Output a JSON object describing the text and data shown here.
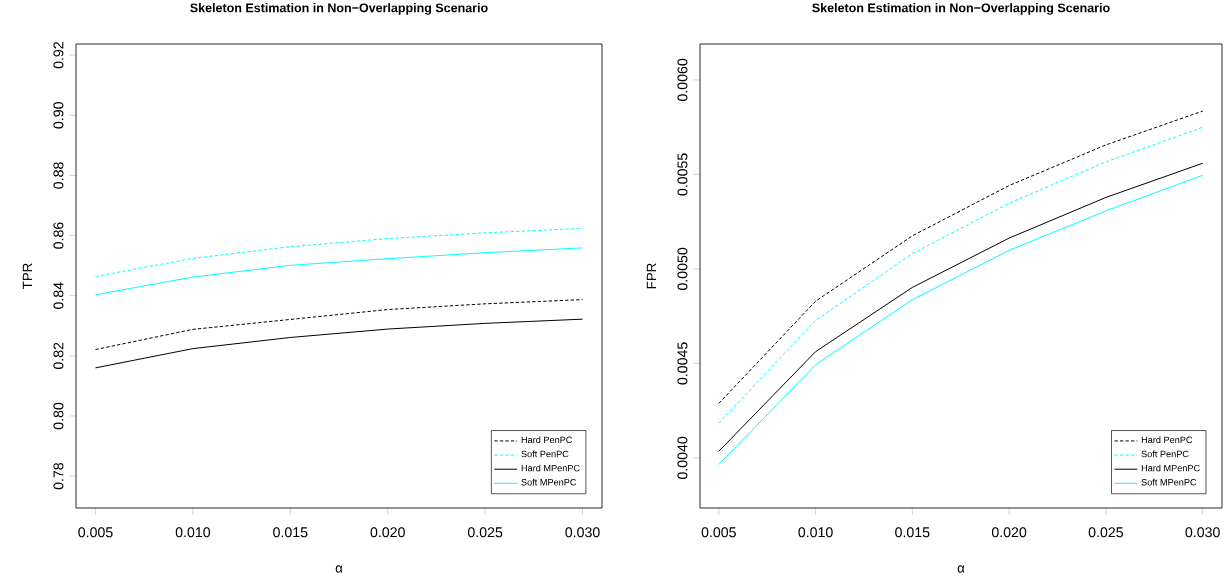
{
  "chart_data": [
    {
      "type": "line",
      "title": "Skeleton Estimation in Non−Overlapping Scenario",
      "xlabel": "α",
      "ylabel": "TPR",
      "x": [
        0.005,
        0.01,
        0.015,
        0.02,
        0.025,
        0.03
      ],
      "series": [
        {
          "name": "Hard PenPC",
          "color": "#000000",
          "line_style": "dashed",
          "values": [
            0.8221,
            0.8288,
            0.8321,
            0.8354,
            0.8373,
            0.8387
          ]
        },
        {
          "name": "Soft PenPC",
          "color": "#00ffff",
          "line_style": "dashed",
          "values": [
            0.8464,
            0.8524,
            0.8563,
            0.859,
            0.8609,
            0.8624
          ]
        },
        {
          "name": "Hard MPenPC",
          "color": "#000000",
          "line_style": "solid",
          "values": [
            0.816,
            0.8224,
            0.8261,
            0.8289,
            0.8308,
            0.8322
          ]
        },
        {
          "name": "Soft MPenPC",
          "color": "#00ffff",
          "line_style": "solid",
          "values": [
            0.8403,
            0.8462,
            0.8501,
            0.8523,
            0.8543,
            0.8559
          ]
        }
      ],
      "xlim": [
        0.004,
        0.031
      ],
      "ylim": [
        0.7694,
        0.9237
      ],
      "xticks": [
        0.005,
        {
          "value": 0.01,
          "label": "0.010"
        },
        0.015,
        {
          "value": 0.02,
          "label": "0.020"
        },
        0.025,
        {
          "value": 0.03,
          "label": "0.030"
        }
      ],
      "yticks": [
        0.78,
        {
          "value": 0.8,
          "label": "0.80"
        },
        0.82,
        0.84,
        0.86,
        0.88,
        {
          "value": 0.9,
          "label": "0.90"
        },
        0.92
      ],
      "legend": "bottom right",
      "grid": false
    },
    {
      "type": "line",
      "title": "Skeleton Estimation in Non−Overlapping Scenario",
      "xlabel": "α",
      "ylabel": "FPR",
      "x": [
        0.005,
        0.01,
        0.015,
        0.02,
        0.025,
        0.03
      ],
      "series": [
        {
          "name": "Hard PenPC",
          "color": "#000000",
          "line_style": "dashed",
          "values": [
            0.004288,
            0.004829,
            0.005175,
            0.005441,
            0.005656,
            0.005835
          ]
        },
        {
          "name": "Soft PenPC",
          "color": "#00ffff",
          "line_style": "dashed",
          "values": [
            0.004184,
            0.004727,
            0.005081,
            0.005347,
            0.005566,
            0.005749
          ]
        },
        {
          "name": "Hard MPenPC",
          "color": "#000000",
          "line_style": "solid",
          "values": [
            0.004035,
            0.004562,
            0.004902,
            0.005163,
            0.005378,
            0.005559
          ]
        },
        {
          "name": "Soft MPenPC",
          "color": "#00ffff",
          "line_style": "solid",
          "values": [
            0.003965,
            0.004493,
            0.004837,
            0.005098,
            0.005307,
            0.005495
          ]
        }
      ],
      "xlim": [
        0.00403,
        0.031
      ],
      "ylim": [
        0.003735,
        0.00619
      ],
      "xticks": [
        0.005,
        {
          "value": 0.01,
          "label": "0.010"
        },
        0.015,
        {
          "value": 0.02,
          "label": "0.020"
        },
        0.025,
        {
          "value": 0.03,
          "label": "0.030"
        }
      ],
      "yticks": [
        {
          "value": 0.004,
          "label": "0.0040"
        },
        0.0045,
        {
          "value": 0.005,
          "label": "0.0050"
        },
        0.0055,
        {
          "value": 0.006,
          "label": "0.0060"
        }
      ],
      "legend": "bottom right",
      "grid": false
    }
  ]
}
